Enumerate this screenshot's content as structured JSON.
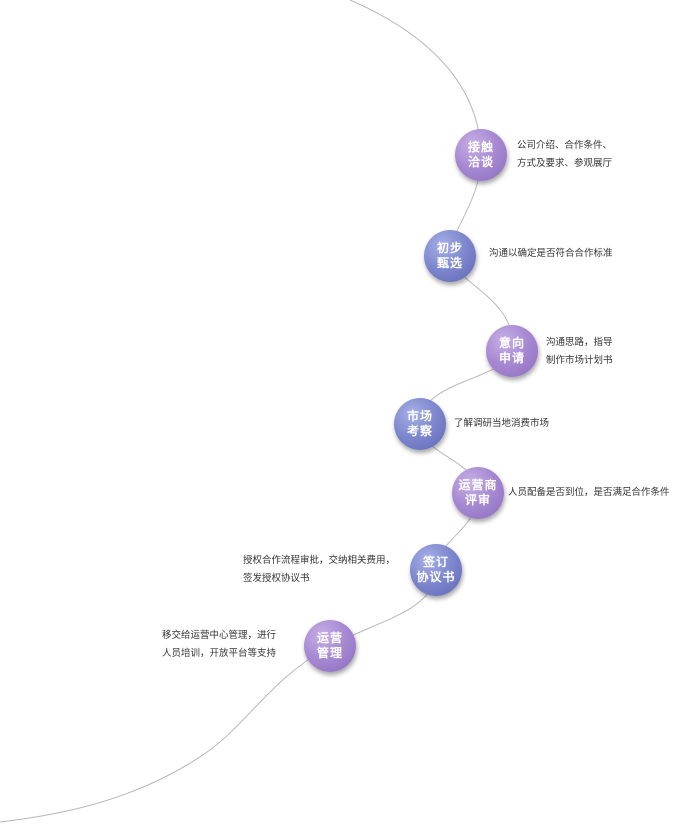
{
  "steps": [
    {
      "title_line1": "接触",
      "title_line2": "洽谈",
      "desc_line1": "公司介绍、合作条件、",
      "desc_line2": "方式及要求、参观展厅"
    },
    {
      "title_line1": "初步",
      "title_line2": "甄选",
      "desc_line1": "沟通以确定是否符合合作标准",
      "desc_line2": ""
    },
    {
      "title_line1": "意向",
      "title_line2": "申请",
      "desc_line1": "沟通思路，指导",
      "desc_line2": "制作市场计划书"
    },
    {
      "title_line1": "市场",
      "title_line2": "考察",
      "desc_line1": "了解调研当地消费市场",
      "desc_line2": ""
    },
    {
      "title_line1": "运营商",
      "title_line2": "评审",
      "desc_line1": "人员配备是否到位，是否满足合作条件",
      "desc_line2": ""
    },
    {
      "title_line1": "签订",
      "title_line2": "协议书",
      "desc_line1": "授权合作流程审批，交纳相关费用，",
      "desc_line2": "签发授权协议书"
    },
    {
      "title_line1": "运营",
      "title_line2": "管理",
      "desc_line1": "移交给运营中心管理，进行",
      "desc_line2": "人员培训，开放平台等支持"
    }
  ]
}
